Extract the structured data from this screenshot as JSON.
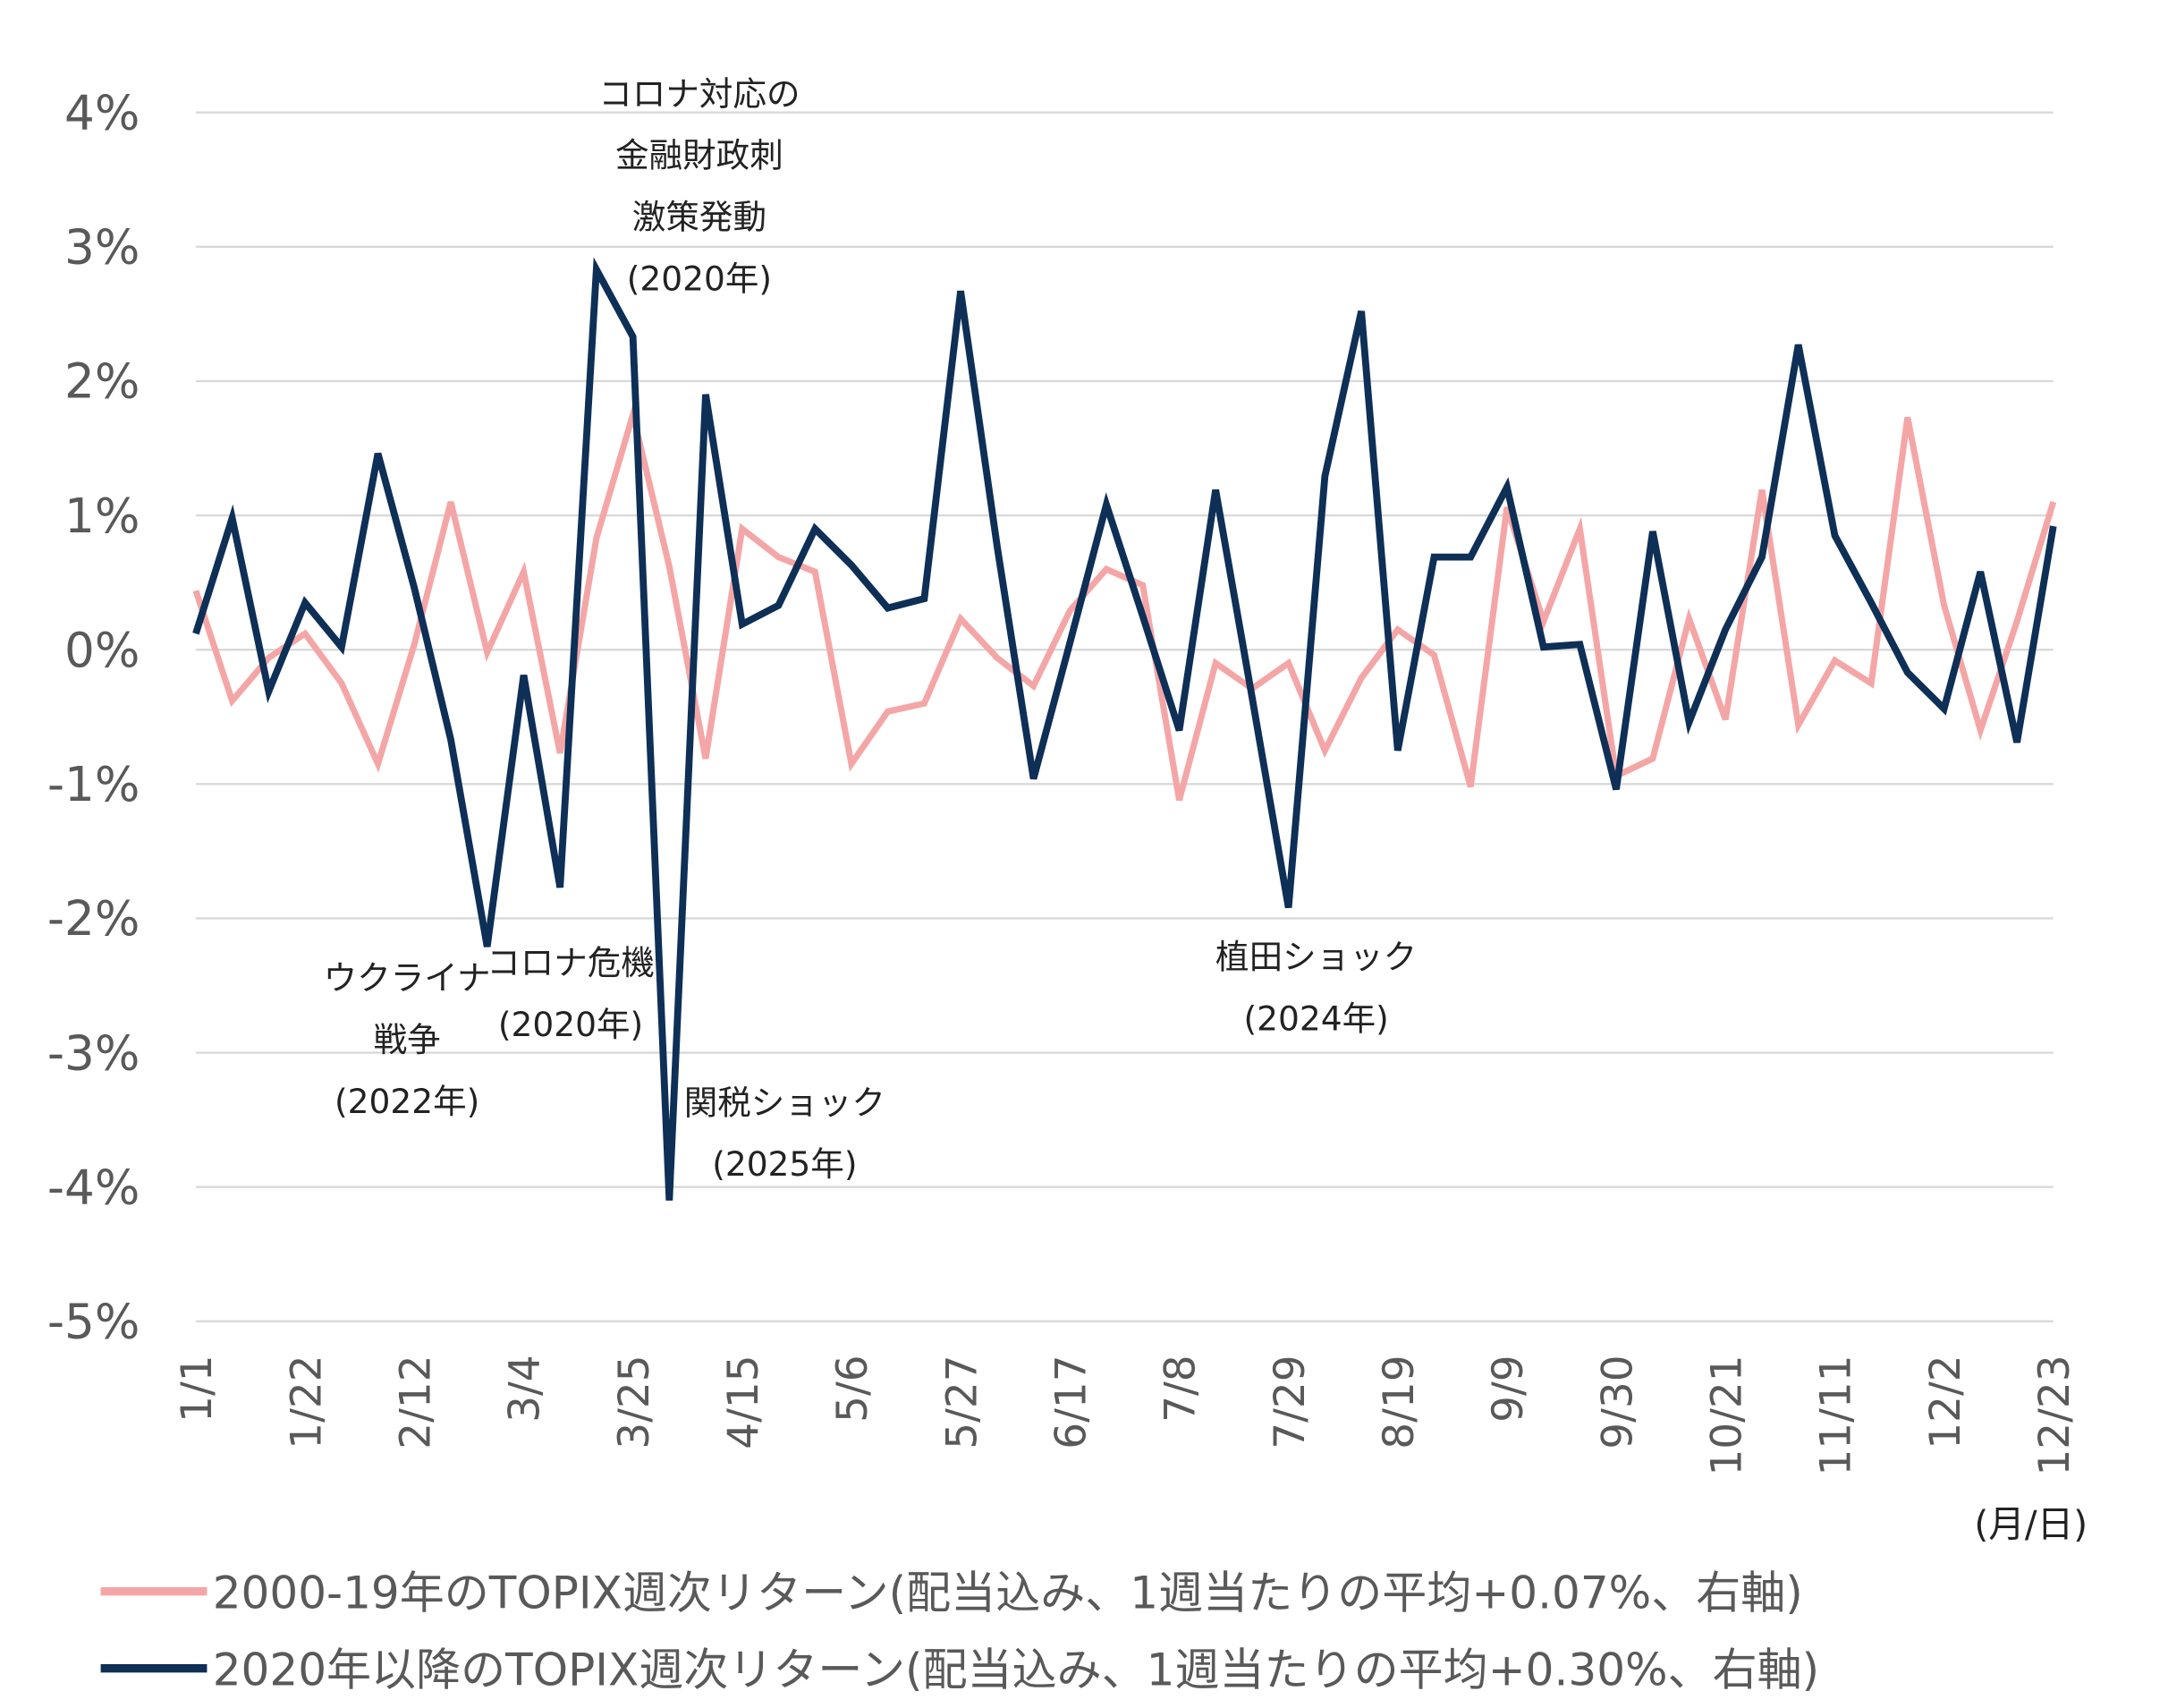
{
  "chart_data": {
    "type": "line",
    "title": "",
    "xlabel": "",
    "ylabel": "",
    "x_unit_label": "(月/日)",
    "ylim": [
      -5,
      4
    ],
    "y_ticks": [
      "4%",
      "3%",
      "2%",
      "1%",
      "0%",
      "-1%",
      "-2%",
      "-3%",
      "-4%",
      "-5%"
    ],
    "y_tick_values": [
      4,
      3,
      2,
      1,
      0,
      -1,
      -2,
      -3,
      -4,
      -5
    ],
    "x_tick_labels": [
      "1/1",
      "1/22",
      "2/12",
      "3/4",
      "3/25",
      "4/15",
      "5/6",
      "5/27",
      "6/17",
      "7/8",
      "7/29",
      "8/19",
      "9/9",
      "9/30",
      "10/21",
      "11/11",
      "12/2",
      "12/23"
    ],
    "x_tick_every_weeks": 3,
    "grid": true,
    "legend_position": "bottom",
    "series": [
      {
        "name": "2000-19年のTOPIX週次リターン(配当込み、1週当たりの平均+0.07%、右軸)",
        "color": "#F4A6A6",
        "values": [
          0.44,
          -0.38,
          -0.06,
          0.12,
          -0.25,
          -0.85,
          0.04,
          1.1,
          -0.02,
          0.58,
          -0.77,
          0.83,
          1.75,
          0.62,
          -0.81,
          0.9,
          0.69,
          0.58,
          -0.85,
          -0.46,
          -0.4,
          0.23,
          -0.06,
          -0.27,
          0.29,
          0.6,
          0.48,
          -1.12,
          -0.1,
          -0.29,
          -0.1,
          -0.75,
          -0.21,
          0.15,
          -0.04,
          -1.02,
          1.06,
          0.21,
          0.9,
          -0.94,
          -0.81,
          0.23,
          -0.52,
          1.19,
          -0.56,
          -0.08,
          -0.25,
          1.73,
          0.33,
          -0.6,
          0.21,
          1.1
        ]
      },
      {
        "name": "2020年以降のTOPIX週次リターン(配当込み、1週当たりの平均+0.30%、右軸)",
        "color": "#0E2F56",
        "values": [
          0.12,
          0.98,
          -0.31,
          0.35,
          0.02,
          1.46,
          0.46,
          -0.67,
          -2.21,
          -0.19,
          -1.77,
          2.83,
          2.33,
          -4.1,
          1.9,
          0.19,
          0.33,
          0.9,
          0.63,
          0.31,
          0.38,
          2.67,
          0.77,
          -0.96,
          0.05,
          1.08,
          0.25,
          -0.6,
          1.19,
          -0.35,
          -1.92,
          1.29,
          2.52,
          -0.75,
          0.69,
          0.69,
          1.21,
          0.02,
          0.04,
          -1.04,
          0.88,
          -0.54,
          0.15,
          0.69,
          2.27,
          0.85,
          0.35,
          -0.17,
          -0.44,
          0.58,
          -0.69,
          0.92
        ]
      }
    ],
    "annotations": [
      {
        "lines": [
          "コロナ対応の",
          "金融財政刺",
          "激策発動",
          "(2020年)"
        ]
      },
      {
        "lines": [
          "ウクライナ",
          "戦争",
          "(2022年)"
        ]
      },
      {
        "lines": [
          "コロナ危機",
          "(2020年)"
        ]
      },
      {
        "lines": [
          "関税ショック",
          "(2025年)"
        ]
      },
      {
        "lines": [
          "植田ショック",
          "(2024年)"
        ]
      }
    ]
  }
}
